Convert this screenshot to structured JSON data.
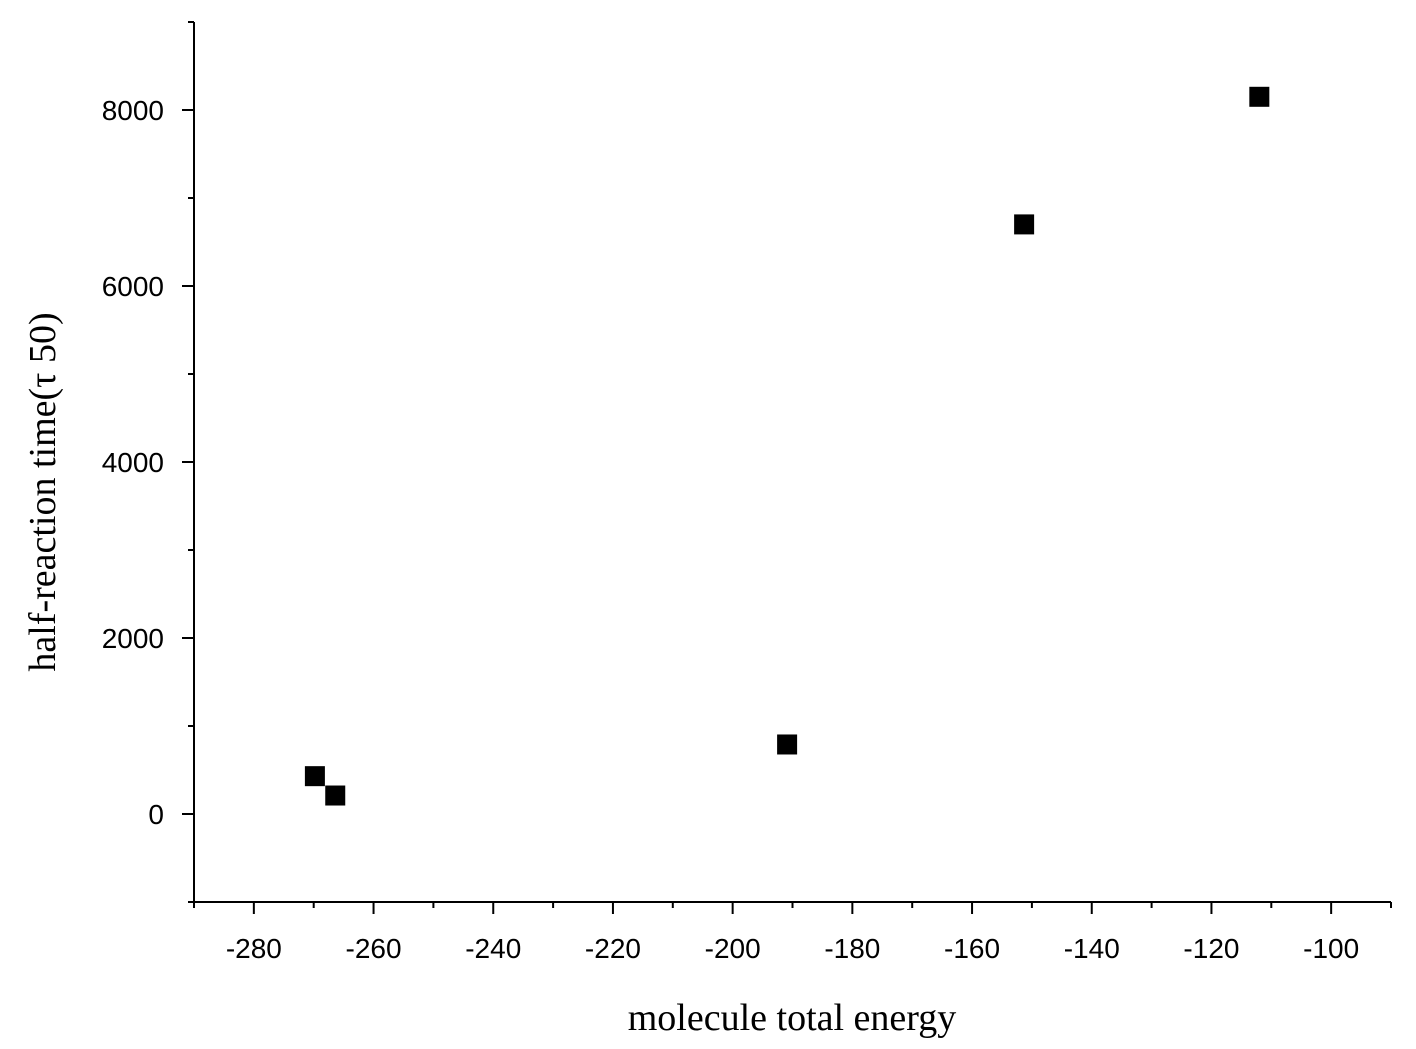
{
  "chart_data": {
    "type": "scatter",
    "title": "",
    "xlabel": "molecule total energy",
    "ylabel": "half-reaction time(τ  50)",
    "xlim": [
      -290,
      -90
    ],
    "ylim": [
      -1000,
      9000
    ],
    "x_ticks": [
      -280,
      -260,
      -240,
      -220,
      -200,
      -180,
      -160,
      -140,
      -120,
      -100
    ],
    "x_tick_labels": [
      "-280",
      "-260",
      "-240",
      "-220",
      "-200",
      "-180",
      "-160",
      "-140",
      "-120",
      "-100"
    ],
    "y_ticks": [
      0,
      2000,
      4000,
      6000,
      8000
    ],
    "y_tick_labels": [
      "0",
      "2000",
      "4000",
      "6000",
      "8000"
    ],
    "grid": false,
    "marker": "square",
    "marker_color": "#000000",
    "series": [
      {
        "x": [
          -269.8,
          -266.4,
          -190.9,
          -151.3,
          -112.0
        ],
        "y": [
          430,
          210,
          790,
          6700,
          8150
        ]
      }
    ]
  }
}
